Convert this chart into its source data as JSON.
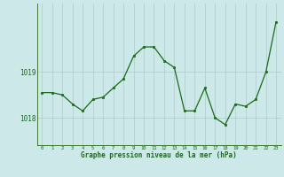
{
  "x": [
    0,
    1,
    2,
    3,
    4,
    5,
    6,
    7,
    8,
    9,
    10,
    11,
    12,
    13,
    14,
    15,
    16,
    17,
    18,
    19,
    20,
    21,
    22,
    23
  ],
  "y": [
    1018.55,
    1018.55,
    1018.5,
    1018.3,
    1018.15,
    1018.4,
    1018.45,
    1018.65,
    1018.85,
    1019.35,
    1019.55,
    1019.55,
    1019.25,
    1019.1,
    1018.15,
    1018.15,
    1018.65,
    1018.0,
    1017.85,
    1018.3,
    1018.25,
    1018.4,
    1019.0,
    1020.1
  ],
  "line_color": "#1a6b1a",
  "marker_color": "#1a6b1a",
  "bg_color": "#cce8e8",
  "grid_color": "#aacccc",
  "xlabel": "Graphe pression niveau de la mer (hPa)",
  "xlabel_color": "#1a6b1a",
  "tick_color": "#1a6b1a",
  "ytick_labels": [
    "1018",
    "1019"
  ],
  "ytick_values": [
    1018,
    1019
  ],
  "ylim": [
    1017.4,
    1020.5
  ],
  "xlim": [
    -0.5,
    23.5
  ],
  "xtick_values": [
    0,
    1,
    2,
    3,
    4,
    5,
    6,
    7,
    8,
    9,
    10,
    11,
    12,
    13,
    14,
    15,
    16,
    17,
    18,
    19,
    20,
    21,
    22,
    23
  ]
}
